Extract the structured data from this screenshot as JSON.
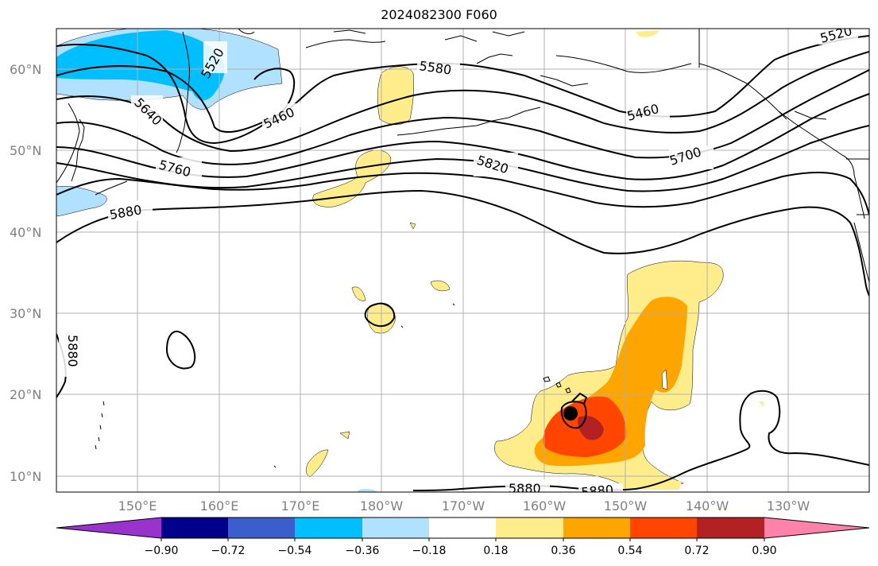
{
  "title": "2024082300 F060",
  "map": {
    "latitude_labels": [
      "60°N",
      "50°N",
      "40°N",
      "30°N",
      "20°N",
      "10°N"
    ],
    "longitude_labels": [
      "150°E",
      "160°E",
      "170°E",
      "180°W",
      "170°W",
      "160°W",
      "150°W",
      "140°W",
      "130°W"
    ],
    "contour_labels": [
      "5520",
      "5580",
      "5460",
      "5640",
      "5760",
      "5880",
      "5460",
      "5820",
      "5700",
      "5520",
      "5880",
      "5880",
      "5880"
    ],
    "storm_marker": "filled-black-dot",
    "grid": true
  },
  "colorbar": {
    "tick_labels": [
      "−0.90",
      "−0.72",
      "−0.54",
      "−0.36",
      "−0.18",
      "0.18",
      "0.36",
      "0.54",
      "0.72",
      "0.90"
    ],
    "colors": [
      "#9933cc",
      "#00008b",
      "#3a5fcd",
      "#00bfff",
      "#b0e2ff",
      "#ffffff",
      "#ffec8b",
      "#ffa500",
      "#ff4500",
      "#b22222",
      "#ff82ab"
    ]
  }
}
